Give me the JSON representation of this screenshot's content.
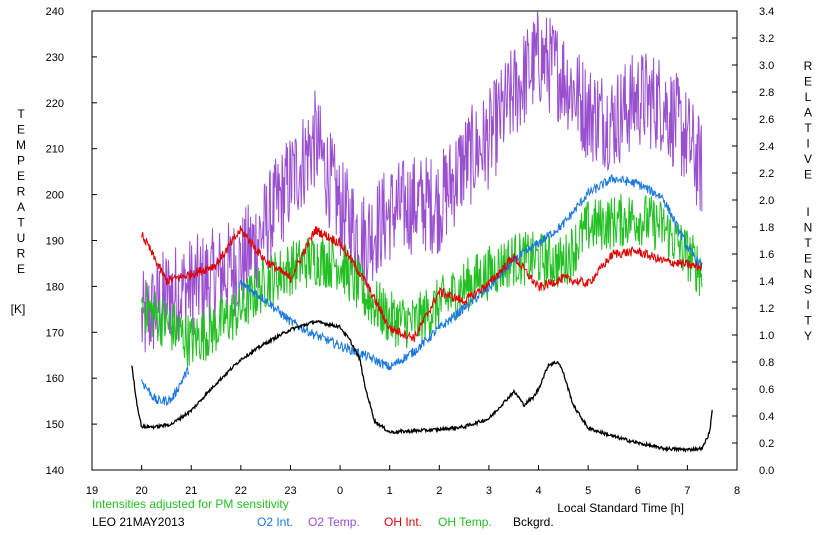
{
  "chart_data": {
    "type": "line",
    "left_axis": {
      "label_letters": [
        "T",
        "E",
        "M",
        "P",
        "E",
        "R",
        "A",
        "T",
        "U",
        "R",
        "E"
      ],
      "unit": "[K]",
      "range": [
        140,
        240
      ],
      "ticks": [
        "140",
        "150",
        "160",
        "170",
        "180",
        "190",
        "200",
        "210",
        "220",
        "230",
        "240"
      ]
    },
    "right_axis": {
      "label_word1": [
        "R",
        "E",
        "L",
        "A",
        "T",
        "I",
        "V",
        "E"
      ],
      "label_word2": [
        "I",
        "N",
        "T",
        "E",
        "N",
        "S",
        "I",
        "T",
        "Y"
      ],
      "range": [
        0.0,
        3.4
      ],
      "ticks": [
        "0.0",
        "0.2",
        "0.4",
        "0.6",
        "0.8",
        "1.0",
        "1.2",
        "1.4",
        "1.6",
        "1.8",
        "2.0",
        "2.2",
        "2.4",
        "2.6",
        "2.8",
        "3.0",
        "3.2",
        "3.4"
      ]
    },
    "x_axis": {
      "label": "Local Standard Time [h]",
      "range": [
        19,
        32
      ],
      "ticks": [
        "19",
        "20",
        "21",
        "22",
        "23",
        "0",
        "1",
        "2",
        "3",
        "4",
        "5",
        "6",
        "7",
        "8"
      ]
    },
    "grid": false,
    "notes": {
      "sensitivity": "Intensities adjusted for PM sensitivity",
      "station_date": "LEO 21MAY2013"
    },
    "legend": [
      {
        "name": "O2 Int.",
        "color": "#1a78e0"
      },
      {
        "name": "O2 Temp.",
        "color": "#9a4fd0"
      },
      {
        "name": "OH Int.",
        "color": "#e00000"
      },
      {
        "name": "OH Temp.",
        "color": "#22c022"
      },
      {
        "name": "Bckgrd.",
        "color": "#000000"
      }
    ],
    "series": [
      {
        "name": "O2 Temp.",
        "axis": "left",
        "color": "#9a4fd0",
        "noise": 11,
        "x": [
          20.0,
          20.5,
          21.0,
          21.5,
          22.0,
          22.5,
          23.0,
          23.5,
          24.0,
          24.5,
          25.0,
          25.5,
          26.0,
          26.5,
          27.0,
          27.5,
          28.0,
          28.5,
          29.0,
          29.5,
          30.0,
          30.5,
          31.0,
          31.3
        ],
        "y": [
          172,
          178,
          180,
          182,
          185,
          193,
          203,
          212,
          197,
          190,
          196,
          198,
          198,
          207,
          212,
          222,
          230,
          226,
          218,
          216,
          221,
          220,
          212,
          205
        ]
      },
      {
        "name": "OH Temp.",
        "axis": "left",
        "color": "#22c022",
        "noise": 6,
        "x": [
          20.0,
          20.5,
          21.0,
          21.5,
          22.0,
          22.5,
          23.0,
          23.5,
          24.0,
          24.5,
          25.0,
          25.5,
          26.0,
          26.5,
          27.0,
          27.5,
          28.0,
          28.5,
          29.0,
          29.5,
          30.0,
          30.5,
          31.0,
          31.3
        ],
        "y": [
          176,
          172,
          168,
          171,
          175,
          181,
          184,
          186,
          185,
          178,
          173,
          172,
          176,
          180,
          183,
          186,
          186,
          185,
          193,
          194,
          195,
          193,
          187,
          183
        ]
      },
      {
        "name": "O2 Int.",
        "axis": "right",
        "color": "#1a78e0",
        "noise": 0.035,
        "x": [
          20.0,
          20.3,
          20.6,
          20.9,
          22.0,
          22.5,
          23.0,
          23.5,
          24.0,
          24.5,
          25.0,
          25.5,
          26.0,
          26.5,
          27.0,
          27.5,
          28.0,
          28.5,
          29.0,
          29.5,
          30.0,
          30.5,
          31.0,
          31.3
        ],
        "y": [
          0.66,
          0.51,
          0.52,
          0.72,
          1.38,
          1.26,
          1.1,
          1.0,
          0.92,
          0.85,
          0.76,
          0.88,
          1.05,
          1.2,
          1.35,
          1.55,
          1.68,
          1.82,
          2.05,
          2.16,
          2.12,
          2.02,
          1.65,
          1.5
        ]
      },
      {
        "name": "OH Int.",
        "axis": "right",
        "color": "#e00000",
        "noise": 0.035,
        "x": [
          20.0,
          20.5,
          21.0,
          21.5,
          22.0,
          22.5,
          23.0,
          23.5,
          24.0,
          24.5,
          25.0,
          25.5,
          26.0,
          26.5,
          27.0,
          27.5,
          28.0,
          28.5,
          29.0,
          29.5,
          30.0,
          30.5,
          31.0,
          31.3
        ],
        "y": [
          1.75,
          1.4,
          1.45,
          1.52,
          1.78,
          1.55,
          1.42,
          1.78,
          1.68,
          1.4,
          1.05,
          0.98,
          1.32,
          1.25,
          1.38,
          1.58,
          1.35,
          1.42,
          1.38,
          1.6,
          1.62,
          1.55,
          1.52,
          1.5
        ]
      },
      {
        "name": "Bckgrd.",
        "axis": "right",
        "color": "#000000",
        "noise": 0.012,
        "x": [
          19.8,
          19.9,
          20.0,
          20.3,
          20.6,
          21.0,
          21.5,
          22.0,
          22.5,
          23.0,
          23.5,
          24.0,
          24.2,
          24.4,
          24.5,
          24.7,
          25.0,
          25.5,
          26.0,
          26.5,
          27.0,
          27.3,
          27.5,
          27.6,
          27.7,
          27.9,
          28.0,
          28.2,
          28.4,
          28.5,
          28.7,
          29.0,
          29.5,
          30.0,
          30.5,
          31.0,
          31.3,
          31.45,
          31.5
        ],
        "y": [
          0.78,
          0.5,
          0.32,
          0.32,
          0.34,
          0.44,
          0.64,
          0.82,
          0.94,
          1.04,
          1.1,
          1.06,
          0.96,
          0.82,
          0.62,
          0.36,
          0.28,
          0.29,
          0.3,
          0.32,
          0.38,
          0.5,
          0.58,
          0.54,
          0.48,
          0.54,
          0.6,
          0.78,
          0.8,
          0.72,
          0.48,
          0.31,
          0.25,
          0.2,
          0.16,
          0.15,
          0.16,
          0.28,
          0.45
        ]
      }
    ]
  }
}
